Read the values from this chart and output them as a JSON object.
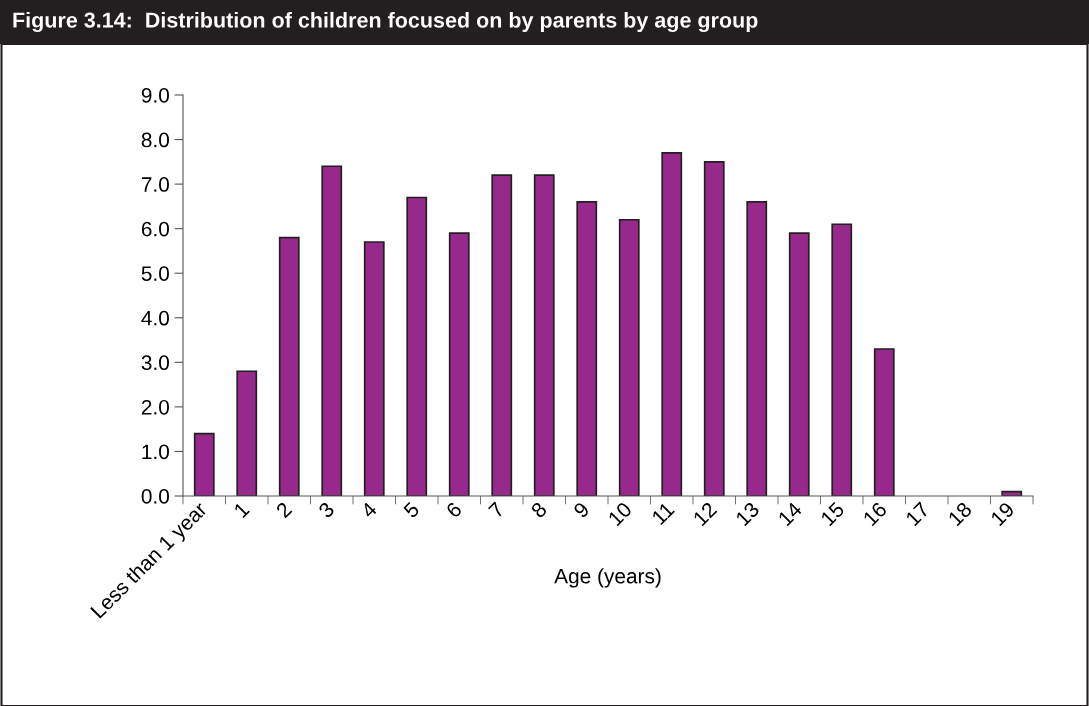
{
  "chart_data": {
    "type": "bar",
    "title": "Figure 3.14:  Distribution of children focused on by parents by age group",
    "xlabel": "Age (years)",
    "categories": [
      "Less than 1 year",
      "1",
      "2",
      "3",
      "4",
      "5",
      "6",
      "7",
      "8",
      "9",
      "10",
      "11",
      "12",
      "13",
      "14",
      "15",
      "16",
      "17",
      "18",
      "19"
    ],
    "values": [
      1.4,
      2.8,
      5.8,
      7.4,
      5.7,
      6.7,
      5.9,
      7.2,
      7.2,
      6.6,
      6.2,
      7.7,
      7.5,
      6.6,
      5.9,
      6.1,
      3.3,
      0,
      0,
      0.1
    ],
    "color": "#97288c",
    "ylim": [
      0,
      9
    ],
    "yticks": [
      {
        "value": 0,
        "label": "0.0"
      },
      {
        "value": 1,
        "label": "1.0"
      },
      {
        "value": 2,
        "label": "2.0"
      },
      {
        "value": 3,
        "label": "3.0"
      },
      {
        "value": 4,
        "label": "4.0"
      },
      {
        "value": 5,
        "label": "5.0"
      },
      {
        "value": 6,
        "label": "6.0"
      },
      {
        "value": 7,
        "label": "7.0"
      },
      {
        "value": 8,
        "label": "8.0"
      },
      {
        "value": 9,
        "label": "9.0"
      }
    ],
    "grid": false,
    "legend": false
  }
}
